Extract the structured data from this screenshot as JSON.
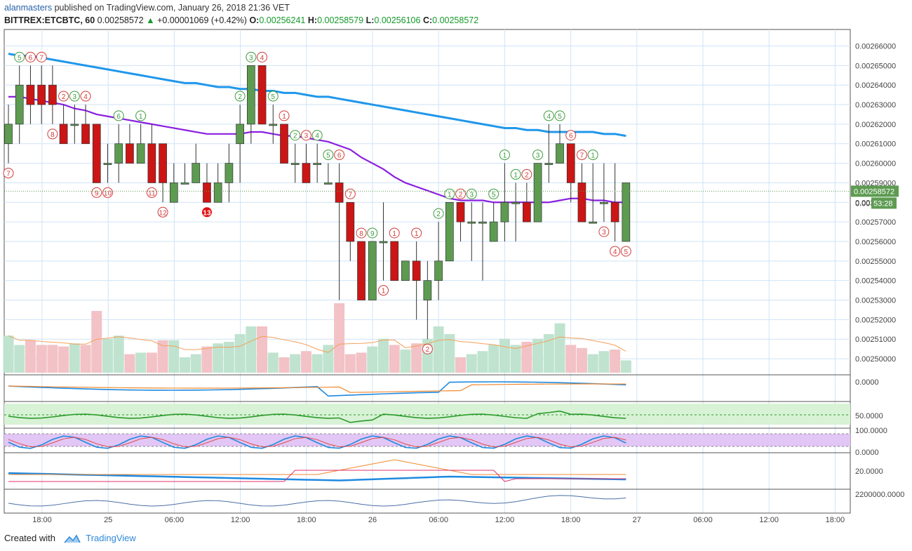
{
  "header": {
    "user": "alanmasters",
    "published": " published on TradingView.com, January 26, 2018 21:36 VET",
    "symbol": "BITTREX:ETCBTC, 60",
    "price": "0.00258572",
    "arrow": "▲",
    "change": "+0.00001069 (+0.42%)",
    "o_label": "O:",
    "o": "0.00256241",
    "h_label": "H:",
    "h": "0.00258579",
    "l_label": "L:",
    "l": "0.00256106",
    "c_label": "C:",
    "c": "0.00258572"
  },
  "footer": {
    "created": "Created with",
    "brand": "TradingView"
  },
  "colors": {
    "up": "#5d9b51",
    "down": "#cc1515",
    "ma_fast": "#8a1ee0",
    "ma_slow": "#1f97ea",
    "grid": "#cfe3f7",
    "vol_up": "#bfe3cf",
    "vol_down": "#f2c2c6"
  },
  "chart_data": {
    "type": "candlestick",
    "y_axis_ticks": [
      "0.00266000",
      "0.00265000",
      "0.00264000",
      "0.00263000",
      "0.00262000",
      "0.00261000",
      "0.00260000",
      "0.00259000",
      "0.00258000",
      "0.00257000",
      "0.00256000",
      "0.00255000",
      "0.00254000",
      "0.00253000",
      "0.00252000",
      "0.00251000",
      "0.00250000"
    ],
    "ylim": [
      0.002495,
      0.002667
    ],
    "last_price_label": "0.00258572",
    "countdown_label": "53:28",
    "partial_label": "0.00",
    "x_axis_ticks": [
      "18:00",
      "25",
      "06:00",
      "12:00",
      "18:00",
      "26",
      "06:00",
      "12:00",
      "18:00",
      "27",
      "06:00",
      "12:00",
      "18:00"
    ],
    "candles": [
      [
        0.00261,
        0.00262,
        0.00263,
        0.0026
      ],
      [
        0.00262,
        0.00264,
        0.00265,
        0.00261
      ],
      [
        0.00264,
        0.00263,
        0.00265,
        0.00262
      ],
      [
        0.00264,
        0.00263,
        0.00265,
        0.00262
      ],
      [
        0.00264,
        0.00263,
        0.00265,
        0.00262
      ],
      [
        0.00262,
        0.00261,
        0.00263,
        0.00261
      ],
      [
        0.00262,
        0.00262,
        0.00263,
        0.00261
      ],
      [
        0.00262,
        0.00261,
        0.00263,
        0.00261
      ],
      [
        0.00262,
        0.00259,
        0.00262,
        0.00259
      ],
      [
        0.0026,
        0.0026,
        0.00261,
        0.00259
      ],
      [
        0.0026,
        0.00261,
        0.00262,
        0.00259
      ],
      [
        0.00261,
        0.0026,
        0.00262,
        0.0026
      ],
      [
        0.0026,
        0.00261,
        0.00262,
        0.0026
      ],
      [
        0.00261,
        0.00259,
        0.00262,
        0.00259
      ],
      [
        0.00261,
        0.00259,
        0.00261,
        0.00258
      ],
      [
        0.00258,
        0.00259,
        0.0026,
        0.00258
      ],
      [
        0.00259,
        0.00259,
        0.0026,
        0.00259
      ],
      [
        0.00259,
        0.0026,
        0.00261,
        0.00259
      ],
      [
        0.00259,
        0.00258,
        0.0026,
        0.00258
      ],
      [
        0.00258,
        0.00259,
        0.0026,
        0.00258
      ],
      [
        0.00259,
        0.0026,
        0.00261,
        0.00258
      ],
      [
        0.00261,
        0.00262,
        0.00263,
        0.00259
      ],
      [
        0.00262,
        0.00265,
        0.00265,
        0.00261
      ],
      [
        0.00265,
        0.00262,
        0.00265,
        0.00262
      ],
      [
        0.00262,
        0.00262,
        0.00263,
        0.00261
      ],
      [
        0.00262,
        0.0026,
        0.00262,
        0.0026
      ],
      [
        0.0026,
        0.0026,
        0.00261,
        0.00259
      ],
      [
        0.0026,
        0.00259,
        0.00261,
        0.00259
      ],
      [
        0.0026,
        0.0026,
        0.00261,
        0.00259
      ],
      [
        0.00259,
        0.00259,
        0.0026,
        0.00259
      ],
      [
        0.00259,
        0.00258,
        0.0026,
        0.00253
      ],
      [
        0.00258,
        0.00256,
        0.00258,
        0.00255
      ],
      [
        0.00256,
        0.00253,
        0.00256,
        0.00253
      ],
      [
        0.00253,
        0.00256,
        0.00256,
        0.00253
      ],
      [
        0.00256,
        0.00256,
        0.00258,
        0.00254
      ],
      [
        0.00256,
        0.00254,
        0.00256,
        0.00254
      ],
      [
        0.00254,
        0.00255,
        0.00255,
        0.00254
      ],
      [
        0.00255,
        0.00254,
        0.00256,
        0.00252
      ],
      [
        0.00253,
        0.00254,
        0.00255,
        0.00251
      ],
      [
        0.00254,
        0.00255,
        0.00257,
        0.00253
      ],
      [
        0.00255,
        0.00258,
        0.00258,
        0.00255
      ],
      [
        0.00258,
        0.00257,
        0.00258,
        0.00256
      ],
      [
        0.00257,
        0.00257,
        0.00258,
        0.00255
      ],
      [
        0.00257,
        0.00257,
        0.00258,
        0.00254
      ],
      [
        0.00256,
        0.00257,
        0.00258,
        0.00256
      ],
      [
        0.00257,
        0.00258,
        0.0026,
        0.00256
      ],
      [
        0.00258,
        0.00258,
        0.00259,
        0.00256
      ],
      [
        0.00258,
        0.00257,
        0.00259,
        0.00257
      ],
      [
        0.00257,
        0.0026,
        0.0026,
        0.00257
      ],
      [
        0.0026,
        0.0026,
        0.00262,
        0.00259
      ],
      [
        0.0026,
        0.00261,
        0.00262,
        0.0026
      ],
      [
        0.00261,
        0.00259,
        0.00261,
        0.00258
      ],
      [
        0.00259,
        0.00257,
        0.0026,
        0.00257
      ],
      [
        0.00257,
        0.00257,
        0.0026,
        0.00257
      ],
      [
        0.00258,
        0.00258,
        0.0026,
        0.00257
      ],
      [
        0.00258,
        0.00257,
        0.0026,
        0.00256
      ],
      [
        0.00256,
        0.00259,
        0.00259,
        0.00256
      ]
    ],
    "ma_fast": [
      0.002634,
      0.002634,
      0.002633,
      0.002632,
      0.002631,
      0.00263,
      0.002628,
      0.002627,
      0.002625,
      0.002624,
      0.002623,
      0.002622,
      0.002621,
      0.00262,
      0.002619,
      0.002618,
      0.002617,
      0.002616,
      0.002615,
      0.002615,
      0.002615,
      0.002615,
      0.002616,
      0.002616,
      0.002615,
      0.002614,
      0.002614,
      0.002613,
      0.002612,
      0.002611,
      0.002609,
      0.002607,
      0.002603,
      0.0026,
      0.002597,
      0.002593,
      0.00259,
      0.002588,
      0.002586,
      0.002584,
      0.002582,
      0.002581,
      0.002581,
      0.002581,
      0.00258,
      0.00258,
      0.00258,
      0.00258,
      0.00258,
      0.00258,
      0.002581,
      0.002582,
      0.002582,
      0.002581,
      0.002581,
      0.00258,
      0.00258
    ],
    "ma_slow": [
      0.002656,
      0.002655,
      0.002655,
      0.002654,
      0.002653,
      0.002652,
      0.002651,
      0.00265,
      0.002649,
      0.002648,
      0.002647,
      0.002646,
      0.002645,
      0.002644,
      0.002643,
      0.002642,
      0.002641,
      0.002641,
      0.00264,
      0.002639,
      0.002639,
      0.002638,
      0.002638,
      0.002637,
      0.002637,
      0.002636,
      0.002636,
      0.002635,
      0.002634,
      0.002634,
      0.002633,
      0.002632,
      0.002631,
      0.00263,
      0.002629,
      0.002628,
      0.002627,
      0.002626,
      0.002625,
      0.002624,
      0.002623,
      0.002622,
      0.002621,
      0.00262,
      0.002619,
      0.002618,
      0.002618,
      0.002617,
      0.002617,
      0.002616,
      0.002616,
      0.002616,
      0.002616,
      0.002616,
      0.002615,
      0.002615,
      0.002614
    ],
    "volume": [
      24,
      18,
      21,
      18,
      18,
      17,
      19,
      18,
      40,
      22,
      24,
      12,
      13,
      13,
      21,
      21,
      10,
      12,
      17,
      19,
      20,
      25,
      30,
      30,
      13,
      10,
      12,
      14,
      12,
      18,
      45,
      12,
      13,
      17,
      22,
      18,
      15,
      19,
      22,
      30,
      25,
      10,
      12,
      14,
      18,
      22,
      18,
      20,
      22,
      25,
      32,
      18,
      16,
      12,
      14,
      15,
      8
    ],
    "seq_labels": [
      {
        "i": 0,
        "n": "7",
        "t": "b"
      },
      {
        "i": 1,
        "n": "5",
        "t": "t"
      },
      {
        "i": 2,
        "n": "6",
        "t": "t"
      },
      {
        "i": 3,
        "n": "7",
        "t": "t"
      },
      {
        "i": 4,
        "n": "8",
        "t": "b"
      },
      {
        "i": 5,
        "n": "2",
        "t": "t"
      },
      {
        "i": 6,
        "n": "3",
        "t": "t"
      },
      {
        "i": 7,
        "n": "4",
        "t": "t"
      },
      {
        "i": 8,
        "n": "9",
        "t": "b"
      },
      {
        "i": 9,
        "n": "10",
        "t": "b"
      },
      {
        "i": 10,
        "n": "6",
        "t": "t"
      },
      {
        "i": 12,
        "n": "1",
        "t": "t"
      },
      {
        "i": 13,
        "n": "11",
        "t": "b"
      },
      {
        "i": 14,
        "n": "12",
        "t": "b"
      },
      {
        "i": 18,
        "n": "13",
        "t": "b"
      },
      {
        "i": 21,
        "n": "2",
        "t": "t"
      },
      {
        "i": 22,
        "n": "3",
        "t": "t"
      },
      {
        "i": 23,
        "n": "4",
        "t": "t"
      },
      {
        "i": 24,
        "n": "5",
        "t": "t"
      },
      {
        "i": 25,
        "n": "1",
        "t": "t"
      },
      {
        "i": 26,
        "n": "2",
        "t": "t"
      },
      {
        "i": 27,
        "n": "3",
        "t": "t"
      },
      {
        "i": 28,
        "n": "4",
        "t": "t"
      },
      {
        "i": 29,
        "n": "5",
        "t": "t"
      },
      {
        "i": 30,
        "n": "6",
        "t": "t"
      },
      {
        "i": 31,
        "n": "7",
        "t": "t"
      },
      {
        "i": 32,
        "n": "8",
        "t": "t"
      },
      {
        "i": 33,
        "n": "9",
        "t": "t"
      },
      {
        "i": 34,
        "n": "1",
        "t": "b"
      },
      {
        "i": 35,
        "n": "1",
        "t": "t"
      },
      {
        "i": 37,
        "n": "1",
        "t": "t"
      },
      {
        "i": 38,
        "n": "2",
        "t": "b"
      },
      {
        "i": 39,
        "n": "2",
        "t": "t"
      },
      {
        "i": 40,
        "n": "1",
        "t": "t"
      },
      {
        "i": 41,
        "n": "2",
        "t": "t"
      },
      {
        "i": 42,
        "n": "3",
        "t": "t"
      },
      {
        "i": 44,
        "n": "5",
        "t": "t"
      },
      {
        "i": 45,
        "n": "1",
        "t": "t"
      },
      {
        "i": 46,
        "n": "1",
        "t": "t"
      },
      {
        "i": 47,
        "n": "2",
        "t": "t"
      },
      {
        "i": 48,
        "n": "3",
        "t": "t"
      },
      {
        "i": 49,
        "n": "4",
        "t": "t"
      },
      {
        "i": 50,
        "n": "5",
        "t": "t"
      },
      {
        "i": 51,
        "n": "6",
        "t": "t"
      },
      {
        "i": 52,
        "n": "7",
        "t": "t"
      },
      {
        "i": 53,
        "n": "1",
        "t": "t"
      },
      {
        "i": 54,
        "n": "3",
        "t": "b"
      },
      {
        "i": 55,
        "n": "4",
        "t": "b"
      },
      {
        "i": 56,
        "n": "5",
        "t": "b"
      }
    ],
    "indicators": {
      "macd_ticks": [
        "0.0000"
      ],
      "rsi_ticks": [
        "50.0000"
      ],
      "stoch_ticks": [
        "100.0000",
        "0.0000"
      ],
      "adx_ticks": [
        "20.0000"
      ],
      "obv_ticks": [
        "2200000.0000"
      ]
    }
  }
}
